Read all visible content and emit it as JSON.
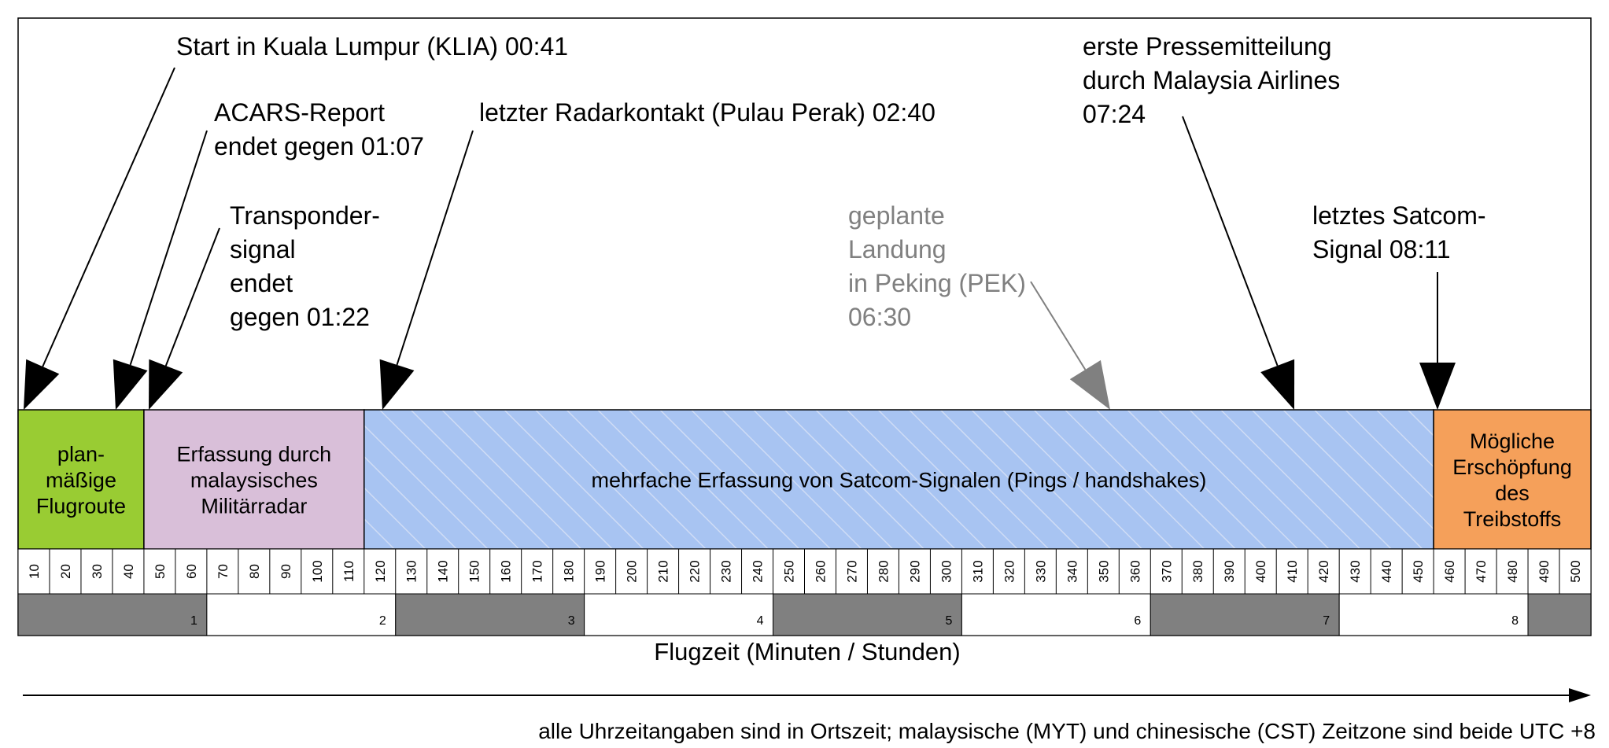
{
  "colors": {
    "planned": "#99cc33",
    "military": "#d9bfd9",
    "satcom": "#a8c4f2",
    "satcom_stripes": "#cfdcf5",
    "fuel": "#f5a05a",
    "hour_grey": "#808080",
    "hour_white": "#ffffff",
    "grey_annotation": "#808080"
  },
  "annotations": [
    {
      "id": "takeoff",
      "lines": [
        "Start in Kuala Lumpur (KLIA) 00:41"
      ],
      "grey": false
    },
    {
      "id": "acars",
      "lines": [
        "ACARS-Report",
        "endet gegen 01:07"
      ],
      "grey": false
    },
    {
      "id": "transponder",
      "lines": [
        "Transponder-",
        "signal",
        "endet",
        "gegen 01:22"
      ],
      "grey": false
    },
    {
      "id": "radar",
      "lines": [
        "letzter Radarkontakt (Pulau Perak) 02:40"
      ],
      "grey": false
    },
    {
      "id": "landing",
      "lines": [
        "geplante",
        "Landung",
        "in Peking (PEK)",
        "06:30"
      ],
      "grey": true
    },
    {
      "id": "press",
      "lines": [
        "erste Pressemitteilung",
        "durch Malaysia Airlines",
        "07:24"
      ],
      "grey": false
    },
    {
      "id": "satcom",
      "lines": [
        "letztes Satcom-",
        "Signal 08:11"
      ],
      "grey": false
    }
  ],
  "segments": [
    {
      "id": "planned-route",
      "start_min": 0,
      "end_min": 40,
      "color": "planned",
      "lines": [
        "plan-",
        "mäßige",
        "Flugroute"
      ]
    },
    {
      "id": "military-radar",
      "start_min": 40,
      "end_min": 110,
      "color": "military",
      "lines": [
        "Erfassung durch",
        "malaysisches",
        "Militärradar"
      ]
    },
    {
      "id": "satcom-pings",
      "start_min": 110,
      "end_min": 450,
      "color": "satcom",
      "lines": [
        "mehrfache Erfassung von Satcom-Signalen (Pings / handshakes)"
      ]
    },
    {
      "id": "fuel-exhaustion",
      "start_min": 450,
      "end_min": 500,
      "color": "fuel",
      "lines": [
        "Mögliche",
        "Erschöpfung",
        "des",
        "Treibstoffs"
      ]
    }
  ],
  "minute_ticks": [
    10,
    20,
    30,
    40,
    50,
    60,
    70,
    80,
    90,
    100,
    110,
    120,
    130,
    140,
    150,
    160,
    170,
    180,
    190,
    200,
    210,
    220,
    230,
    240,
    250,
    260,
    270,
    280,
    290,
    300,
    310,
    320,
    330,
    340,
    350,
    360,
    370,
    380,
    390,
    400,
    410,
    420,
    430,
    440,
    450,
    460,
    470,
    480,
    490,
    500
  ],
  "hours": [
    "1",
    "2",
    "3",
    "4",
    "5",
    "6",
    "7",
    "8"
  ],
  "axis_title": "Flugzeit (Minuten / Stunden)",
  "footnote": "alle Uhrzeitangaben sind in Ortszeit; malaysische (MYT) und chinesische (CST) Zeitzone sind beide UTC +8"
}
